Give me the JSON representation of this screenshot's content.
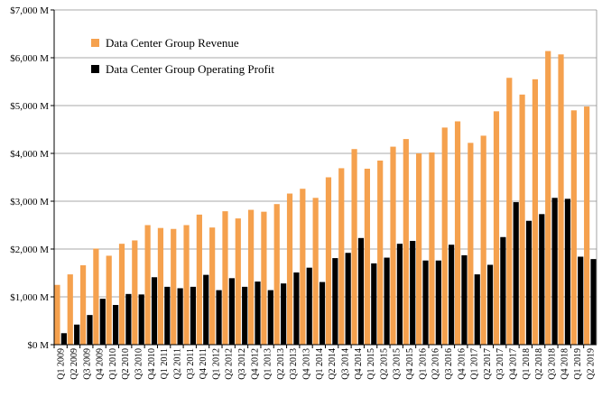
{
  "chart_data": {
    "type": "bar",
    "title": "",
    "xlabel": "",
    "ylabel": "",
    "ylim": [
      0,
      7000
    ],
    "y_tick_values": [
      0,
      1000,
      2000,
      3000,
      4000,
      5000,
      6000,
      7000
    ],
    "y_tick_labels": [
      "$0 M",
      "$1,000 M",
      "$2,000 M",
      "$3,000 M",
      "$4,000 M",
      "$5,000 M",
      "$6,000 M",
      "$7,000 M"
    ],
    "grid": true,
    "legend_position": "top-left",
    "categories": [
      "Q1 2009",
      "Q2 2009",
      "Q3 2009",
      "Q4 2009",
      "Q1 2010",
      "Q2 2010",
      "Q3 2010",
      "Q4 2010",
      "Q1 2011",
      "Q2 2011",
      "Q3 2011",
      "Q4 2011",
      "Q1 2012",
      "Q2 2012",
      "Q3 2012",
      "Q4 2012",
      "Q1 2013",
      "Q2 2013",
      "Q3 2013",
      "Q4 2013",
      "Q1 2014",
      "Q2 2014",
      "Q3 2014",
      "Q4 2014",
      "Q1 2015",
      "Q2 2015",
      "Q3 2015",
      "Q4 2015",
      "Q1 2016",
      "Q2 2016",
      "Q3 2016",
      "Q4 2016",
      "Q1 2017",
      "Q2 2017",
      "Q3 2017",
      "Q4 2017",
      "Q1 2018",
      "Q2 2018",
      "Q3 2018",
      "Q4 2018",
      "Q1 2019",
      "Q2 2019"
    ],
    "series": [
      {
        "name": "Data Center Group Revenue",
        "color": "#f5a14e",
        "values": [
          1250,
          1470,
          1660,
          2010,
          1860,
          2110,
          2180,
          2500,
          2440,
          2420,
          2500,
          2720,
          2450,
          2790,
          2640,
          2820,
          2780,
          2940,
          3160,
          3260,
          3070,
          3500,
          3690,
          4090,
          3680,
          3850,
          4140,
          4300,
          4000,
          4020,
          4540,
          4670,
          4220,
          4370,
          4880,
          5580,
          5230,
          5550,
          6140,
          6070,
          4900,
          4980
        ]
      },
      {
        "name": "Data Center Group Operating Profit",
        "color": "#000000",
        "values": [
          240,
          420,
          620,
          960,
          830,
          1060,
          1050,
          1410,
          1210,
          1180,
          1210,
          1460,
          1140,
          1390,
          1210,
          1320,
          1140,
          1280,
          1510,
          1610,
          1310,
          1810,
          1920,
          2230,
          1700,
          1820,
          2110,
          2170,
          1760,
          1760,
          2090,
          1870,
          1470,
          1670,
          2250,
          2980,
          2590,
          2730,
          3070,
          3050,
          1840,
          1790
        ]
      }
    ]
  }
}
